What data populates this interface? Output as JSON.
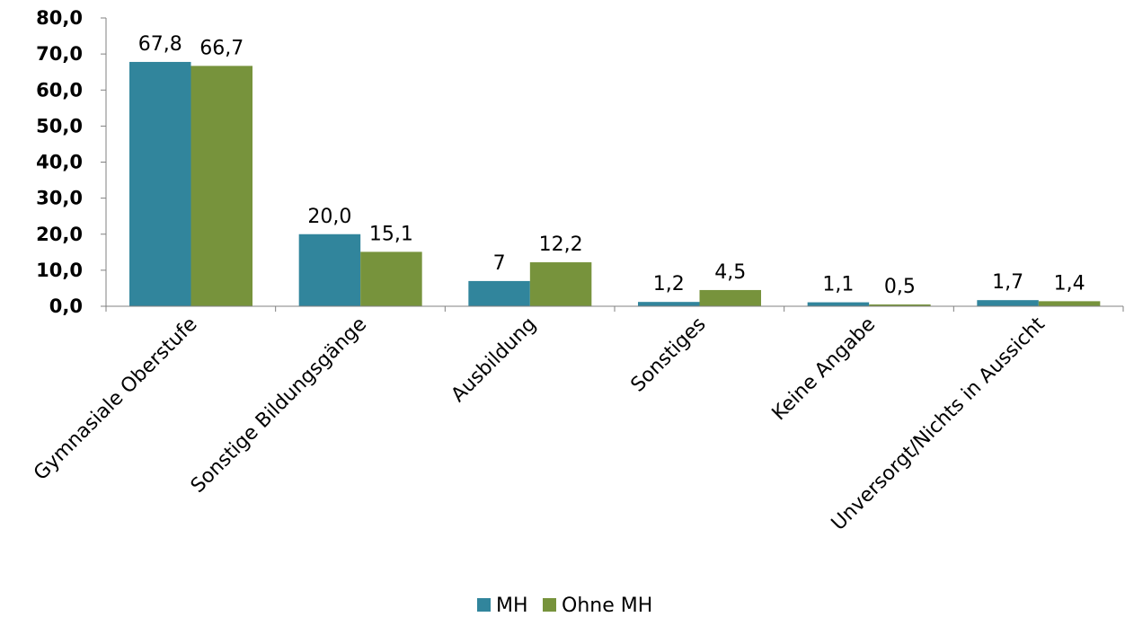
{
  "chart_data": {
    "type": "bar",
    "categories": [
      "Gymnasiale Oberstufe",
      "Sonstige Bildungsgänge",
      "Ausbildung",
      "Sonstiges",
      "Keine Angabe",
      "Unversorgt/Nichts in Aussicht"
    ],
    "series": [
      {
        "name": "MH",
        "values": [
          67.8,
          20.0,
          7,
          1.2,
          1.1,
          1.7
        ],
        "labels": [
          "67,8",
          "20,0",
          "7",
          "1,2",
          "1,1",
          "1,7"
        ],
        "color": "#31859c"
      },
      {
        "name": "Ohne MH",
        "values": [
          66.7,
          15.1,
          12.2,
          4.5,
          0.5,
          1.4
        ],
        "labels": [
          "66,7",
          "15,1",
          "12,2",
          "4,5",
          "0,5",
          "1,4"
        ],
        "color": "#77933c"
      }
    ],
    "yticks": [
      "0,0",
      "10,0",
      "20,0",
      "30,0",
      "40,0",
      "50,0",
      "60,0",
      "70,0",
      "80,0"
    ],
    "ylim": [
      0,
      80
    ],
    "grid": false,
    "legend_position": "bottom"
  }
}
